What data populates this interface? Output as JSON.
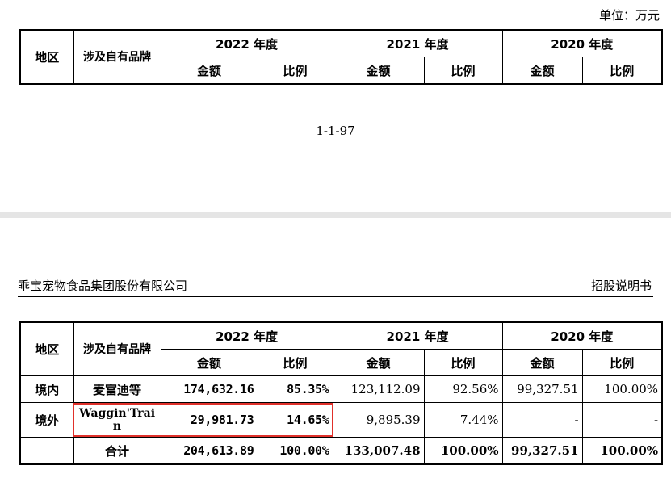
{
  "unit_label": "单位：万元",
  "page_number": "1-1-97",
  "header": {
    "company": "乖宝宠物食品集团股份有限公司",
    "doc_type": "招股说明书"
  },
  "table_head": {
    "region": "地区",
    "brand": "涉及自有品牌",
    "years": [
      "2022 年度",
      "2021 年度",
      "2020 年度"
    ],
    "amount": "金额",
    "ratio": "比例"
  },
  "rows": [
    {
      "region": "境内",
      "brand": "麦富迪等",
      "y2022_amount": "174,632.16",
      "y2022_ratio": "85.35%",
      "y2021_amount": "123,112.09",
      "y2021_ratio": "92.56%",
      "y2020_amount": "99,327.51",
      "y2020_ratio": "100.00%"
    },
    {
      "region": "境外",
      "brand": "Waggin'Train",
      "y2022_amount": "29,981.73",
      "y2022_ratio": "14.65%",
      "y2021_amount": "9,895.39",
      "y2021_ratio": "7.44%",
      "y2020_amount": "-",
      "y2020_ratio": "-"
    },
    {
      "region": "",
      "brand": "合计",
      "y2022_amount": "204,613.89",
      "y2022_ratio": "100.00%",
      "y2021_amount": "133,007.48",
      "y2021_ratio": "100.00%",
      "y2020_amount": "99,327.51",
      "y2020_ratio": "100.00%"
    }
  ],
  "highlight_color": "#e0302a"
}
